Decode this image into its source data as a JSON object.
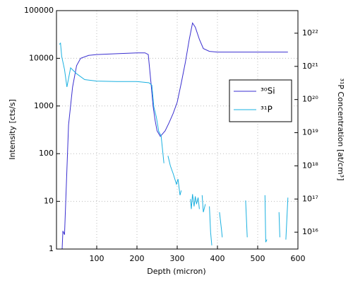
{
  "chart_data": {
    "type": "line",
    "xlabel": "Depth (micron)",
    "ylabel": "Intensity [cts/s]",
    "y2label": "³¹P Concentration [at/cm³]",
    "xlim": [
      0,
      600
    ],
    "xticks": [
      100,
      200,
      300,
      400,
      500,
      600
    ],
    "ylim": [
      1,
      100000
    ],
    "yticks": [
      1,
      10,
      100,
      1000,
      10000,
      100000
    ],
    "yscale": "log",
    "y2lim": [
      3100000000000000.0,
      4.8e+22
    ],
    "y2scale": "log",
    "y2ticks": [
      {
        "value": 1e+16,
        "label": "10¹⁶"
      },
      {
        "value": 1e+17,
        "label": "10¹⁷"
      },
      {
        "value": 1e+18,
        "label": "10¹⁸"
      },
      {
        "value": 1e+19,
        "label": "10¹⁹"
      },
      {
        "value": 1e+20,
        "label": "10²⁰"
      },
      {
        "value": 1e+21,
        "label": "10²¹"
      },
      {
        "value": 1e+22,
        "label": "10²²"
      }
    ],
    "grid": true,
    "legend": "upper right",
    "series": [
      {
        "name": "³⁰Si",
        "color": "#3a2fd0",
        "axis": "y",
        "x": [
          14,
          16,
          20,
          25,
          30,
          40,
          50,
          60,
          80,
          100,
          150,
          200,
          220,
          228,
          235,
          240,
          245,
          250,
          258,
          270,
          280,
          290,
          300,
          310,
          320,
          330,
          338,
          345,
          355,
          365,
          380,
          400,
          450,
          500,
          550,
          575
        ],
        "values": [
          1,
          2.4,
          2,
          30,
          400,
          2500,
          7000,
          10000,
          11500,
          12000,
          12500,
          13000,
          13000,
          12000,
          3000,
          1000,
          500,
          300,
          230,
          300,
          450,
          700,
          1200,
          3000,
          8000,
          25000,
          55000,
          45000,
          25000,
          16000,
          14000,
          13500,
          13500,
          13500,
          13500,
          13500
        ]
      },
      {
        "name": "³¹P",
        "color": "#1ab0e0",
        "axis": "y2",
        "x": [
          7,
          10,
          13,
          20,
          26,
          35,
          50,
          70,
          100,
          150,
          200,
          230,
          237,
          242,
          248,
          254,
          260,
          267,
          270,
          277,
          283,
          290,
          298,
          302,
          307,
          310,
          320,
          333,
          335,
          338,
          342,
          345,
          348,
          352,
          355,
          360,
          362,
          365,
          370,
          375,
          380,
          383,
          386,
          395,
          405,
          410,
          412,
          440,
          470,
          474,
          500,
          518,
          520,
          523,
          540,
          553,
          555,
          565,
          570,
          575
        ],
        "values": [
          4.6e+21,
          5e+21,
          2e+21,
          8e+20,
          2.4e+20,
          9e+20,
          6e+20,
          4e+20,
          3.6e+20,
          3.5e+20,
          3.5e+20,
          3.2e+20,
          2.7e+20,
          6e+19,
          3e+19,
          1.1e+19,
          8e+18,
          1.2e+18,
          null,
          2e+18,
          1e+18,
          5.8e+17,
          2.8e+17,
          4e+17,
          1.3e+17,
          1.8e+17,
          null,
          1e+17,
          5e+16,
          1.4e+17,
          6e+16,
          1.2e+17,
          7e+16,
          1.1e+17,
          5e+16,
          null,
          1.3e+17,
          4e+16,
          7e+16,
          null,
          6e+16,
          1e+16,
          4000000000000000.0,
          null,
          4e+16,
          1.2e+16,
          7000000000000000.0,
          null,
          9e+16,
          7000000000000000.0,
          null,
          1.3e+17,
          5000000000000000.0,
          6000000000000000.0,
          null,
          4e+16,
          7000000000000000.0,
          null,
          6000000000000000.0,
          1.1e+17
        ]
      }
    ]
  }
}
